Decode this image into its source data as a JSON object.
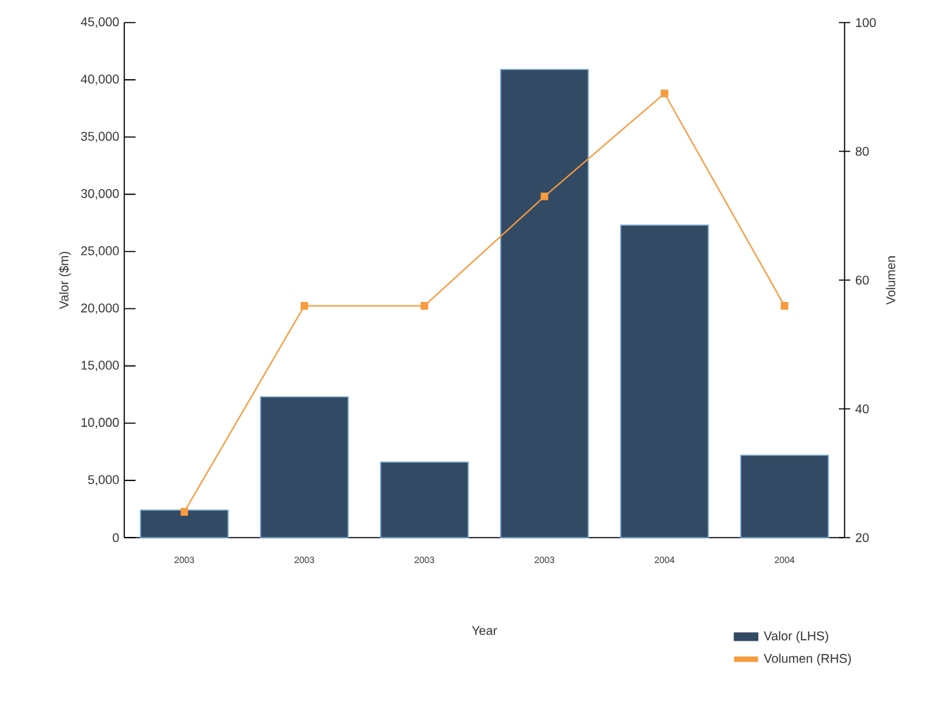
{
  "chart_data": {
    "type": "bar",
    "xlabel": "Year",
    "ylabel": "Valor ($m)",
    "y2label": "Volumen",
    "categories": [
      "2003",
      "2003",
      "2003",
      "2003",
      "2004",
      "2004"
    ],
    "series": [
      {
        "name": "Valor (LHS)",
        "color": "#324a63",
        "values": [
          2400,
          12300,
          6600,
          40900,
          27300,
          7200
        ]
      },
      {
        "name": "Volumen (RHS)",
        "type": "line",
        "axis": "y2",
        "color": "#f79b3f",
        "marker": "square",
        "values": [
          24,
          56,
          56,
          73,
          89,
          56
        ]
      }
    ],
    "ylim": [
      0,
      45000
    ],
    "yticks": [
      0,
      {
        "value": 5000,
        "label": "5,000"
      },
      {
        "value": 10000,
        "label": "10,000"
      },
      {
        "value": 15000,
        "label": "15,000"
      },
      {
        "value": 20000,
        "label": "20,000"
      },
      {
        "value": 25000,
        "label": "25,000"
      },
      {
        "value": 30000,
        "label": "30,000"
      },
      {
        "value": 35000,
        "label": "35,000"
      },
      {
        "value": 40000,
        "label": "40,000"
      },
      {
        "value": 45000,
        "label": "45,000"
      }
    ],
    "y2lim": [
      20,
      100
    ],
    "y2ticks": [
      20,
      40,
      60,
      80,
      100
    ],
    "legend": "bottom right"
  }
}
